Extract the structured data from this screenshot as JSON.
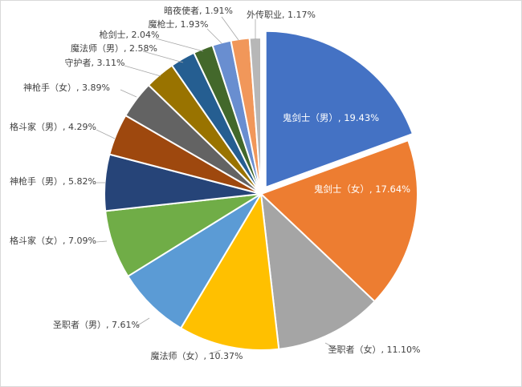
{
  "chart_data": {
    "type": "pie",
    "title": "",
    "slices": [
      {
        "name": "鬼剑士（男）",
        "value": 19.43,
        "label": "鬼剑士（男）, 19.43%",
        "color": "#4472C4",
        "exploded": true,
        "inside": true
      },
      {
        "name": "鬼剑士（女）",
        "value": 17.64,
        "label": "鬼剑士（女）, 17.64%",
        "color": "#ED7D31",
        "inside": true
      },
      {
        "name": "圣职者（女）",
        "value": 11.1,
        "label": "圣职者（女）, 11.10%",
        "color": "#A5A5A5"
      },
      {
        "name": "魔法师（女）",
        "value": 10.37,
        "label": "魔法师（女）, 10.37%",
        "color": "#FFC000"
      },
      {
        "name": "圣职者（男）",
        "value": 7.61,
        "label": "圣职者（男）, 7.61%",
        "color": "#5B9BD5"
      },
      {
        "name": "格斗家（女）",
        "value": 7.09,
        "label": "格斗家（女）, 7.09%",
        "color": "#70AD47"
      },
      {
        "name": "神枪手（男）",
        "value": 5.82,
        "label": "神枪手（男）, 5.82%",
        "color": "#264478"
      },
      {
        "name": "格斗家（男）",
        "value": 4.29,
        "label": "格斗家（男）, 4.29%",
        "color": "#9E480E"
      },
      {
        "name": "神枪手（女）",
        "value": 3.89,
        "label": "神枪手（女）, 3.89%",
        "color": "#636363"
      },
      {
        "name": "守护者",
        "value": 3.11,
        "label": "守护者, 3.11%",
        "color": "#997300"
      },
      {
        "name": "魔法师（男）",
        "value": 2.58,
        "label": "魔法师（男）, 2.58%",
        "color": "#255E91"
      },
      {
        "name": "枪剑士",
        "value": 2.04,
        "label": "枪剑士, 2.04%",
        "color": "#43682B"
      },
      {
        "name": "魔枪士",
        "value": 1.93,
        "label": "魔枪士, 1.93%",
        "color": "#698ED0"
      },
      {
        "name": "暗夜使者",
        "value": 1.91,
        "label": "暗夜使者, 1.91%",
        "color": "#F1975A"
      },
      {
        "name": "外传职业",
        "value": 1.17,
        "label": "外传职业, 1.17%",
        "color": "#B7B7B7"
      }
    ],
    "legend": "none"
  }
}
